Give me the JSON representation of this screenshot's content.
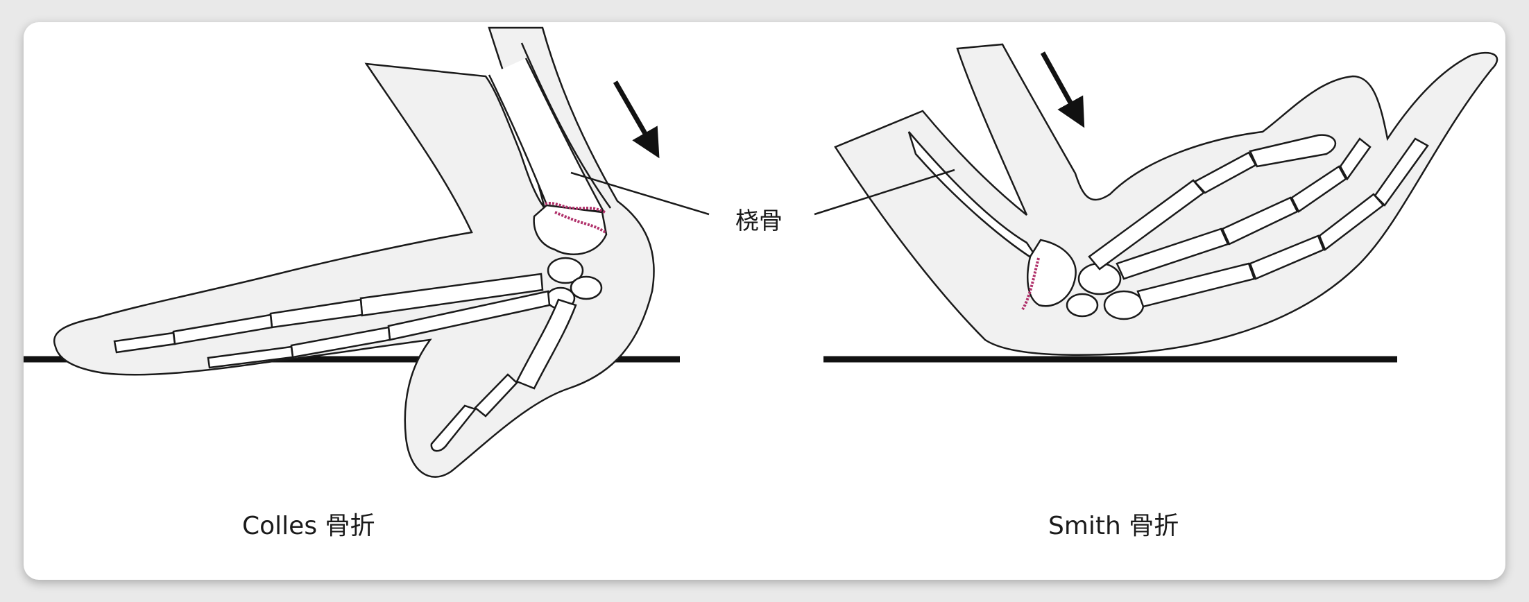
{
  "callout_label": "桡骨",
  "left_caption": "Colles 骨折",
  "right_caption": "Smith 骨折",
  "colors": {
    "outline": "#1a1a1a",
    "skin": "#f0f0f0",
    "fracture": "#b0306a",
    "ground": "#111111",
    "card": "#ffffff",
    "page": "#e9e9e9"
  }
}
